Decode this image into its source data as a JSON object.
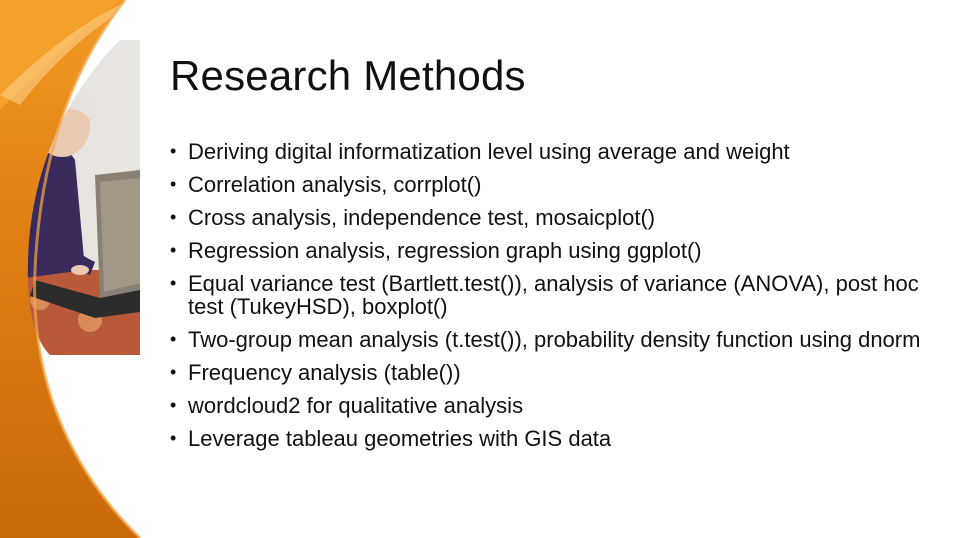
{
  "slide": {
    "title": "Research Methods",
    "bullets": [
      "Deriving digital informatization level using average and weight",
      "Correlation analysis, corrplot()",
      "Cross analysis, independence test, mosaicplot()",
      "Regression analysis, regression graph using ggplot()",
      "Equal variance test (Bartlett.test()), analysis of variance (ANOVA), post hoc test (TukeyHSD), boxplot()",
      "Two-group mean analysis (t.test()), probability density function using dnorm",
      "Frequency analysis (table())",
      "wordcloud2 for qualitative analysis",
      "Leverage tableau geometries with GIS data"
    ]
  },
  "colors": {
    "accent_orange": "#e98a1a",
    "accent_dark_orange": "#c9690a",
    "text": "#111111",
    "background": "#ffffff"
  },
  "photo": {
    "icon": "elderly-woman-using-laptop-photo"
  }
}
